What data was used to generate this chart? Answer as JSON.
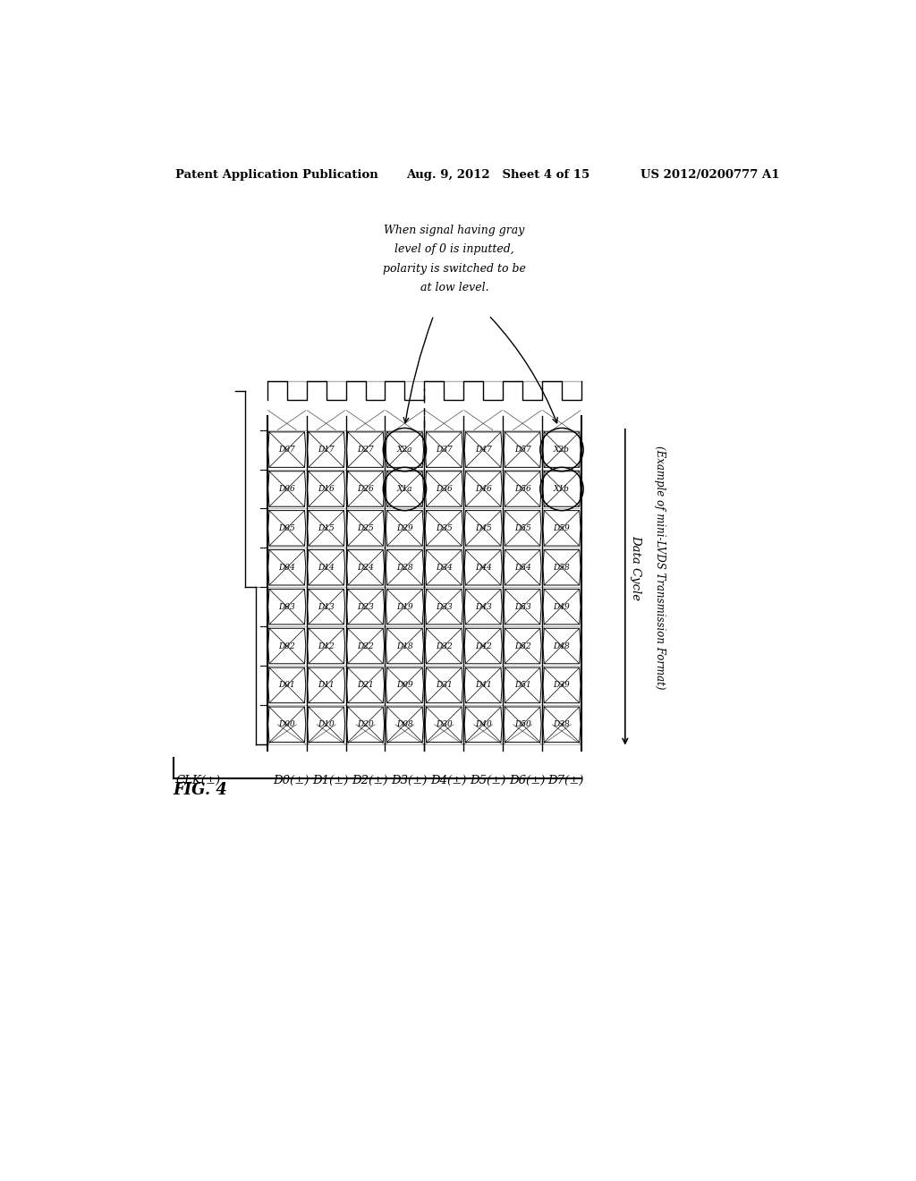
{
  "header_left": "Patent Application Publication",
  "header_mid": "Aug. 9, 2012   Sheet 4 of 15",
  "header_right": "US 2012/0200777 A1",
  "fig_label": "FIG. 4",
  "row_labels_bottom": [
    "CLK(±)",
    "D0(±)",
    "D1(±)",
    "D2(±)",
    "D3(±)",
    "D4(±)",
    "D5(±)",
    "D6(±)",
    "D7(±)"
  ],
  "columns": [
    [
      "D00",
      "D01",
      "D02",
      "D03",
      "D04",
      "D05",
      "D06",
      "D07",
      "D08",
      "D09"
    ],
    [
      "D10",
      "D11",
      "D12",
      "D13",
      "D14",
      "D15",
      "D16",
      "D17",
      "D18",
      "D19"
    ],
    [
      "D20",
      "D21",
      "D22",
      "D23",
      "D24",
      "D25",
      "D26",
      "D27",
      "D28",
      "D29"
    ],
    [
      "D08",
      "D09",
      "D18",
      "D19",
      "D28",
      "D29",
      "X1a",
      "X2a",
      "",
      ""
    ],
    [
      "D30",
      "D31",
      "D32",
      "D33",
      "D34",
      "D35",
      "D36",
      "D37",
      "D38",
      "D39"
    ],
    [
      "D40",
      "D41",
      "D42",
      "D43",
      "D44",
      "D45",
      "D46",
      "D47",
      "D48",
      "D49"
    ],
    [
      "D50",
      "D51",
      "D52",
      "D53",
      "D54",
      "D55",
      "D56",
      "D57",
      "D58",
      "D59"
    ],
    [
      "D38",
      "D39",
      "D48",
      "D49",
      "D58",
      "D59",
      "X1b",
      "X2b",
      "",
      ""
    ]
  ],
  "annotation_text": "When signal having gray\nlevel of 0 is inputted,\npolarity is switched to be\nat low level.",
  "side_label": "Data Cycle",
  "bottom_label": "(Example of mini-LVDS Transmission Format)",
  "circled_labels": [
    "X1a",
    "X2a",
    "X1b",
    "X2b"
  ]
}
